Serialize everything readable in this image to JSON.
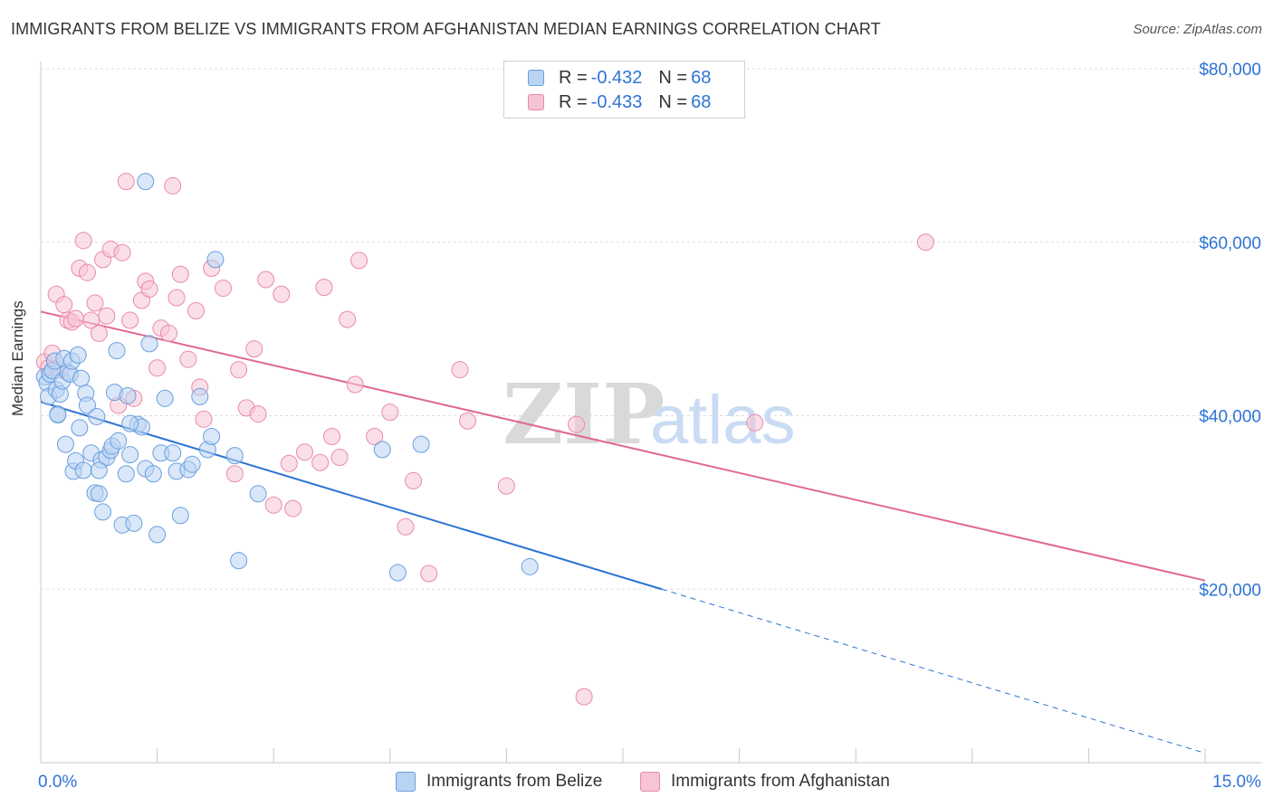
{
  "title": "IMMIGRANTS FROM BELIZE VS IMMIGRANTS FROM AFGHANISTAN MEDIAN EARNINGS CORRELATION CHART",
  "source": "Source: ZipAtlas.com",
  "watermark": {
    "zip": "ZIP",
    "atlas": "atlas"
  },
  "legend": {
    "belize": {
      "r_label": "R =",
      "r_value": "-0.432",
      "n_label": "N =",
      "n_value": "68"
    },
    "afghanistan": {
      "r_label": "R =",
      "r_value": "-0.433",
      "n_label": "N =",
      "n_value": "68"
    }
  },
  "bottom_legend": {
    "belize": "Immigrants from Belize",
    "afghanistan": "Immigrants from Afghanistan"
  },
  "colors": {
    "belize_fill": "#b9d3f2",
    "belize_stroke": "#6a9fe0",
    "belize_line": "#2b73d2",
    "afghanistan_fill": "#f7c4d4",
    "afghanistan_stroke": "#e98aa9",
    "afghanistan_line": "#e0698f",
    "tick_label": "#2e74d6"
  },
  "chart_data": {
    "type": "scatter",
    "title": "IMMIGRANTS FROM BELIZE VS IMMIGRANTS FROM AFGHANISTAN MEDIAN EARNINGS CORRELATION CHART",
    "xlabel": "",
    "ylabel": "Median Earnings",
    "xlim": [
      0,
      15
    ],
    "ylim": [
      0,
      80000
    ],
    "x_tick_labels": [
      {
        "value": 0,
        "label": "0.0%"
      },
      {
        "value": 15,
        "label": "15.0%"
      }
    ],
    "y_ticks": [
      {
        "value": 20000,
        "label": "$20,000"
      },
      {
        "value": 40000,
        "label": "$40,000"
      },
      {
        "value": 60000,
        "label": "$60,000"
      },
      {
        "value": 80000,
        "label": "$80,000"
      }
    ],
    "series": [
      {
        "name": "Immigrants from Belize",
        "r": -0.432,
        "n": 68,
        "trend": {
          "x0": 0.0,
          "y0": 41600,
          "x1": 8.0,
          "y1": 20000,
          "dashed_to_x": 15.0
        },
        "points": [
          [
            0.05,
            44500
          ],
          [
            0.08,
            43800
          ],
          [
            0.1,
            42200
          ],
          [
            0.12,
            44800
          ],
          [
            0.15,
            45200
          ],
          [
            0.18,
            46300
          ],
          [
            0.2,
            43000
          ],
          [
            0.22,
            40200
          ],
          [
            0.25,
            42500
          ],
          [
            0.28,
            44000
          ],
          [
            0.3,
            46600
          ],
          [
            0.32,
            36700
          ],
          [
            0.35,
            45000
          ],
          [
            0.38,
            44800
          ],
          [
            0.4,
            46300
          ],
          [
            0.42,
            33600
          ],
          [
            0.45,
            34800
          ],
          [
            0.48,
            47000
          ],
          [
            0.5,
            38600
          ],
          [
            0.52,
            44300
          ],
          [
            0.55,
            33700
          ],
          [
            0.58,
            42600
          ],
          [
            0.6,
            41200
          ],
          [
            0.65,
            35700
          ],
          [
            0.7,
            31100
          ],
          [
            0.72,
            39900
          ],
          [
            0.75,
            31000
          ],
          [
            0.78,
            34900
          ],
          [
            0.8,
            28900
          ],
          [
            0.85,
            35200
          ],
          [
            0.9,
            36000
          ],
          [
            0.92,
            36500
          ],
          [
            0.95,
            42700
          ],
          [
            0.98,
            47500
          ],
          [
            1.0,
            37100
          ],
          [
            1.05,
            27400
          ],
          [
            1.1,
            33300
          ],
          [
            1.12,
            42300
          ],
          [
            1.15,
            35500
          ],
          [
            1.2,
            27600
          ],
          [
            1.25,
            39000
          ],
          [
            1.3,
            38700
          ],
          [
            1.35,
            33900
          ],
          [
            1.4,
            48300
          ],
          [
            1.45,
            33300
          ],
          [
            1.5,
            26300
          ],
          [
            1.55,
            35700
          ],
          [
            1.6,
            42000
          ],
          [
            1.7,
            35700
          ],
          [
            1.75,
            33600
          ],
          [
            1.8,
            28500
          ],
          [
            1.9,
            33800
          ],
          [
            1.95,
            34400
          ],
          [
            2.05,
            42200
          ],
          [
            2.15,
            36100
          ],
          [
            2.2,
            37600
          ],
          [
            2.25,
            58000
          ],
          [
            2.5,
            35400
          ],
          [
            2.55,
            23300
          ],
          [
            2.8,
            31000
          ],
          [
            4.4,
            36100
          ],
          [
            4.6,
            21900
          ],
          [
            4.9,
            36700
          ],
          [
            6.3,
            22600
          ],
          [
            1.35,
            67000
          ],
          [
            0.22,
            40100
          ],
          [
            0.75,
            33700
          ],
          [
            1.15,
            39100
          ]
        ]
      },
      {
        "name": "Immigrants from Afghanistan",
        "r": -0.433,
        "n": 68,
        "trend": {
          "x0": 0.0,
          "y0": 52000,
          "x1": 15.0,
          "y1": 21000
        },
        "points": [
          [
            0.05,
            46200
          ],
          [
            0.1,
            45500
          ],
          [
            0.15,
            47200
          ],
          [
            0.2,
            54000
          ],
          [
            0.25,
            45300
          ],
          [
            0.3,
            52800
          ],
          [
            0.35,
            51000
          ],
          [
            0.4,
            50800
          ],
          [
            0.45,
            51200
          ],
          [
            0.5,
            57000
          ],
          [
            0.55,
            60200
          ],
          [
            0.6,
            56500
          ],
          [
            0.65,
            51000
          ],
          [
            0.7,
            53000
          ],
          [
            0.75,
            49500
          ],
          [
            0.8,
            58000
          ],
          [
            0.85,
            51500
          ],
          [
            0.9,
            59200
          ],
          [
            1.0,
            41200
          ],
          [
            1.05,
            58800
          ],
          [
            1.1,
            67000
          ],
          [
            1.15,
            51000
          ],
          [
            1.2,
            42000
          ],
          [
            1.3,
            53300
          ],
          [
            1.35,
            55500
          ],
          [
            1.4,
            54600
          ],
          [
            1.5,
            45500
          ],
          [
            1.55,
            50100
          ],
          [
            1.65,
            49500
          ],
          [
            1.7,
            66500
          ],
          [
            1.75,
            53600
          ],
          [
            1.8,
            56300
          ],
          [
            1.9,
            46500
          ],
          [
            2.0,
            52100
          ],
          [
            2.05,
            43300
          ],
          [
            2.1,
            39600
          ],
          [
            2.2,
            57000
          ],
          [
            2.35,
            54700
          ],
          [
            2.5,
            33300
          ],
          [
            2.55,
            45300
          ],
          [
            2.65,
            40900
          ],
          [
            2.75,
            47700
          ],
          [
            2.8,
            40200
          ],
          [
            2.9,
            55700
          ],
          [
            3.0,
            29700
          ],
          [
            3.1,
            54000
          ],
          [
            3.2,
            34500
          ],
          [
            3.25,
            29300
          ],
          [
            3.4,
            35800
          ],
          [
            3.6,
            34600
          ],
          [
            3.65,
            54800
          ],
          [
            3.75,
            37600
          ],
          [
            3.85,
            35200
          ],
          [
            3.95,
            51100
          ],
          [
            4.05,
            43600
          ],
          [
            4.1,
            57900
          ],
          [
            4.3,
            37600
          ],
          [
            4.5,
            40400
          ],
          [
            4.7,
            27200
          ],
          [
            4.8,
            32500
          ],
          [
            5.0,
            21800
          ],
          [
            5.4,
            45300
          ],
          [
            5.5,
            39400
          ],
          [
            6.0,
            31900
          ],
          [
            6.9,
            39000
          ],
          [
            7.0,
            7600
          ],
          [
            9.2,
            39200
          ],
          [
            11.4,
            60000
          ]
        ]
      }
    ]
  }
}
